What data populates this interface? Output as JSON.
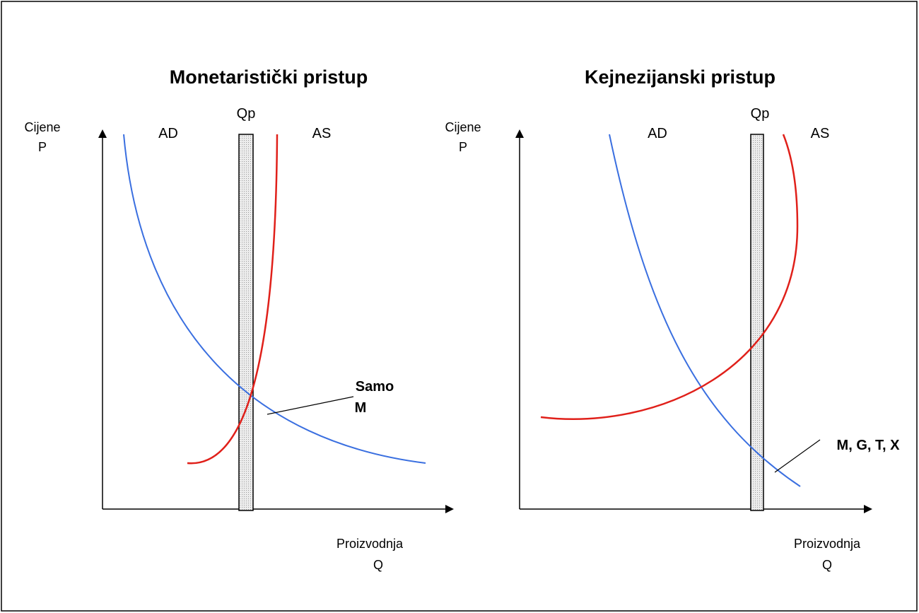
{
  "panels": [
    {
      "title": "Monetaristički pristup",
      "y_label": [
        "Cijene",
        "P"
      ],
      "x_label": [
        "Proizvodnja",
        "Q"
      ],
      "curves": {
        "ad": "AD",
        "as": "AS",
        "qp": "Qp"
      },
      "annotation": [
        "Samo",
        "M"
      ]
    },
    {
      "title": "Kejnezijanski pristup",
      "y_label": [
        "Cijene",
        "P"
      ],
      "x_label": [
        "Proizvodnja",
        "Q"
      ],
      "curves": {
        "ad": "AD",
        "as": "AS",
        "qp": "Qp"
      },
      "annotation": [
        "M, G, T, X"
      ]
    }
  ]
}
